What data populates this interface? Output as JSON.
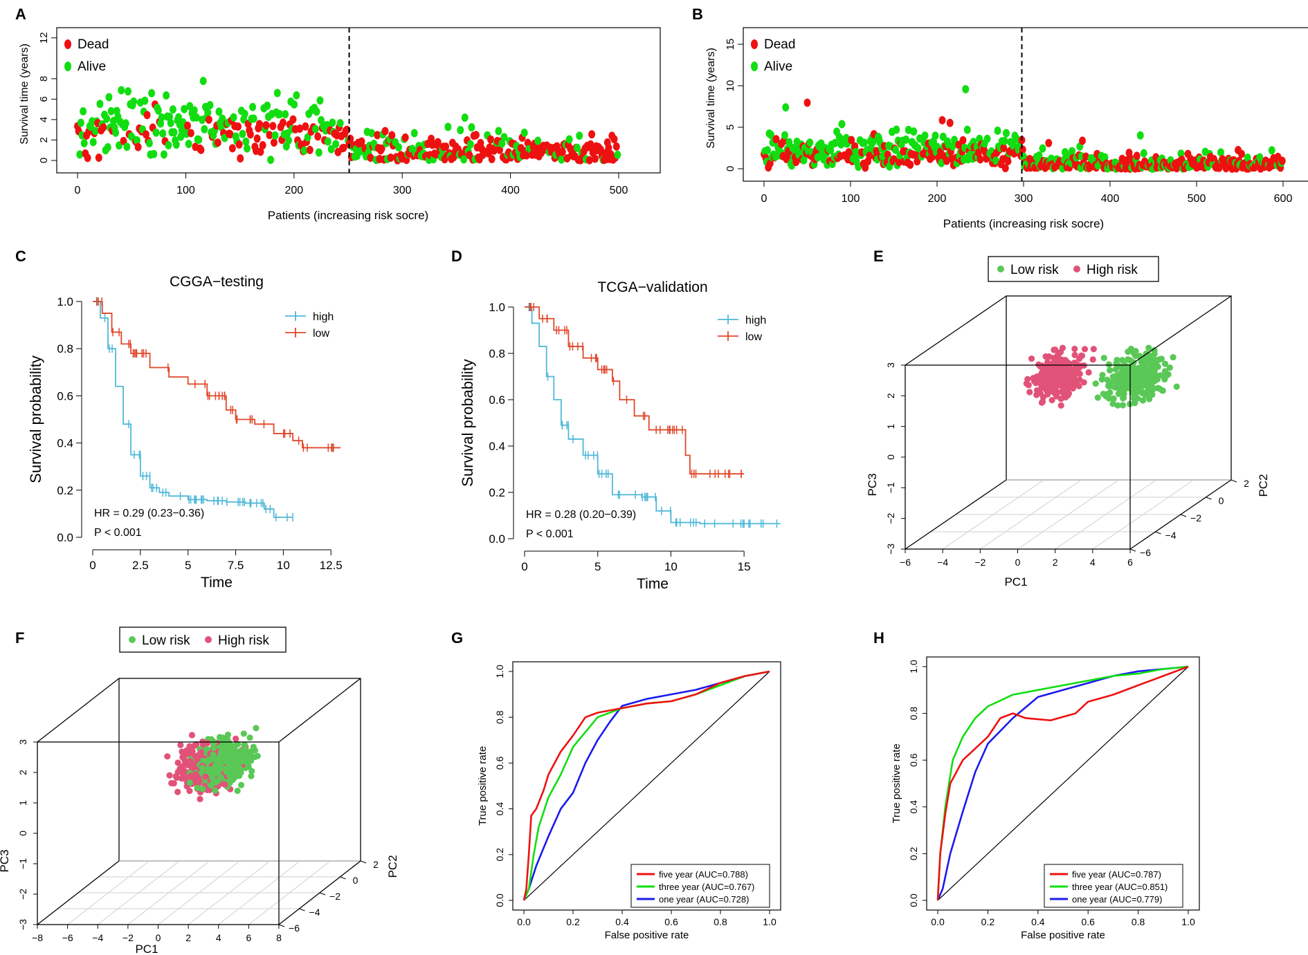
{
  "figure": {
    "panel_letters": [
      "A",
      "B",
      "C",
      "D",
      "E",
      "F",
      "G",
      "H"
    ],
    "colors": {
      "dead": "#ee1111",
      "alive": "#11dd11",
      "km_high": "#4fb8d8",
      "km_low": "#e0472a",
      "pca_low": "#5ac857",
      "pca_high": "#e15278",
      "roc_five": "#ee1111",
      "roc_three": "#11dd11",
      "roc_one": "#1a1aee"
    }
  },
  "chart_data": [
    {
      "id": "A",
      "type": "scatter",
      "xlabel": "Patients (increasing risk socre)",
      "ylabel": "Survival time (years)",
      "xlim": [
        0,
        500
      ],
      "ylim": [
        0,
        13
      ],
      "xticks": [
        "0",
        "100",
        "200",
        "300",
        "400",
        "500"
      ],
      "yticks": [
        "0",
        "2",
        "4",
        "6",
        "8",
        "12"
      ],
      "yticks_values": [
        0,
        2,
        4,
        6,
        8,
        12
      ],
      "legend": [
        "Dead",
        "Alive"
      ],
      "cutoff": 251,
      "n": 482,
      "seed": 11,
      "series": [
        {
          "name": "Dead",
          "count": 300
        },
        {
          "name": "Alive",
          "count": 182
        }
      ]
    },
    {
      "id": "B",
      "type": "scatter",
      "xlabel": "Patients (increasing risk socre)",
      "ylabel": "Survival time (years)",
      "xlim": [
        0,
        600
      ],
      "ylim": [
        0,
        17
      ],
      "xticks": [
        "0",
        "100",
        "200",
        "300",
        "400",
        "500",
        "600"
      ],
      "yticks": [
        "0",
        "5",
        "10",
        "15"
      ],
      "yticks_values": [
        0,
        5,
        10,
        15
      ],
      "legend": [
        "Dead",
        "Alive"
      ],
      "cutoff": 298,
      "n": 600,
      "seed": 23,
      "series": [
        {
          "name": "Dead",
          "count": 150
        },
        {
          "name": "Alive",
          "count": 450
        }
      ]
    },
    {
      "id": "C",
      "type": "line",
      "title": "CGGA−testing",
      "xlabel": "Time",
      "ylabel": "Survival probability",
      "xlim": [
        0,
        13
      ],
      "ylim": [
        0,
        1
      ],
      "xticks": [
        "0",
        "2.5",
        "5",
        "7.5",
        "10",
        "12.5"
      ],
      "xticks_values": [
        0,
        2.5,
        5,
        7.5,
        10,
        12.5
      ],
      "yticks": [
        "0.0",
        "0.2",
        "0.4",
        "0.6",
        "0.8",
        "1.0"
      ],
      "legend": [
        "high",
        "low"
      ],
      "hr_text": "HR = 0.29 (0.23−0.36)",
      "p_text": "P < 0.001",
      "series": [
        {
          "name": "high",
          "points": [
            [
              0,
              1.0
            ],
            [
              0.4,
              0.93
            ],
            [
              0.8,
              0.8
            ],
            [
              1.2,
              0.64
            ],
            [
              1.6,
              0.48
            ],
            [
              2.0,
              0.35
            ],
            [
              2.5,
              0.26
            ],
            [
              3.0,
              0.21
            ],
            [
              3.5,
              0.19
            ],
            [
              4.0,
              0.175
            ],
            [
              5.0,
              0.16
            ],
            [
              6.0,
              0.155
            ],
            [
              7.0,
              0.15
            ],
            [
              8.0,
              0.145
            ],
            [
              9.0,
              0.12
            ],
            [
              9.5,
              0.085
            ],
            [
              10.5,
              0.085
            ]
          ]
        },
        {
          "name": "low",
          "points": [
            [
              0,
              1.0
            ],
            [
              0.5,
              0.95
            ],
            [
              1.0,
              0.87
            ],
            [
              1.5,
              0.82
            ],
            [
              2.0,
              0.78
            ],
            [
              3.0,
              0.72
            ],
            [
              4.0,
              0.68
            ],
            [
              5.0,
              0.65
            ],
            [
              6.0,
              0.6
            ],
            [
              7.0,
              0.54
            ],
            [
              7.5,
              0.5
            ],
            [
              8.5,
              0.48
            ],
            [
              9.5,
              0.44
            ],
            [
              10.5,
              0.41
            ],
            [
              11.0,
              0.38
            ],
            [
              13.0,
              0.38
            ]
          ]
        }
      ]
    },
    {
      "id": "D",
      "type": "line",
      "title": "TCGA−validation",
      "xlabel": "Time",
      "ylabel": "Survival probability",
      "xlim": [
        0,
        17.5
      ],
      "ylim": [
        0,
        1
      ],
      "xticks": [
        "0",
        "5",
        "10",
        "15"
      ],
      "xticks_values": [
        0,
        5,
        10,
        15
      ],
      "yticks": [
        "0.0",
        "0.2",
        "0.4",
        "0.6",
        "0.8",
        "1.0"
      ],
      "legend": [
        "high",
        "low"
      ],
      "hr_text": "HR = 0.28 (0.20−0.39)",
      "p_text": "P < 0.001",
      "series": [
        {
          "name": "high",
          "points": [
            [
              0,
              1.0
            ],
            [
              0.5,
              0.93
            ],
            [
              1.0,
              0.83
            ],
            [
              1.5,
              0.7
            ],
            [
              2.0,
              0.6
            ],
            [
              2.5,
              0.49
            ],
            [
              3.0,
              0.43
            ],
            [
              4.0,
              0.36
            ],
            [
              5.0,
              0.28
            ],
            [
              6.0,
              0.19
            ],
            [
              8.0,
              0.18
            ],
            [
              9.0,
              0.12
            ],
            [
              10.0,
              0.07
            ],
            [
              12.0,
              0.065
            ],
            [
              17.5,
              0.065
            ]
          ]
        },
        {
          "name": "low",
          "points": [
            [
              0,
              1.0
            ],
            [
              1.0,
              0.95
            ],
            [
              2.0,
              0.9
            ],
            [
              3.0,
              0.83
            ],
            [
              4.0,
              0.78
            ],
            [
              5.0,
              0.73
            ],
            [
              6.0,
              0.68
            ],
            [
              6.5,
              0.6
            ],
            [
              7.5,
              0.53
            ],
            [
              8.5,
              0.47
            ],
            [
              10.0,
              0.47
            ],
            [
              11.0,
              0.36
            ],
            [
              11.3,
              0.28
            ],
            [
              15.0,
              0.28
            ]
          ]
        }
      ]
    },
    {
      "id": "E",
      "type": "scatter",
      "projection": "3d",
      "xlabel": "PC1",
      "ylabel": "PC2",
      "zlabel": "PC3",
      "xlim": [
        -6,
        6
      ],
      "ylim": [
        -6,
        2
      ],
      "zlim": [
        -3,
        3
      ],
      "xticks": [
        "−6",
        "−4",
        "−2",
        "0",
        "2",
        "4",
        "6"
      ],
      "yticks": [
        "−6",
        "−4",
        "−2",
        "0",
        "2"
      ],
      "zticks": [
        "−3",
        "−2",
        "−1",
        "0",
        "1",
        "2",
        "3"
      ],
      "legend": [
        "Low risk",
        "High risk"
      ],
      "seed": 37,
      "series": [
        {
          "name": "Low risk",
          "count": 260,
          "center": [
            2.0,
            0.5,
            0.8
          ],
          "spread": [
            1.8,
            1.6,
            0.9
          ]
        },
        {
          "name": "High risk",
          "count": 240,
          "center": [
            -1.5,
            -0.5,
            1.1
          ],
          "spread": [
            1.4,
            1.4,
            0.9
          ]
        }
      ]
    },
    {
      "id": "F",
      "type": "scatter",
      "projection": "3d",
      "xlabel": "PC1",
      "ylabel": "PC2",
      "zlabel": "PC3",
      "xlim": [
        -8,
        8
      ],
      "ylim": [
        -6,
        2
      ],
      "zlim": [
        -3,
        3
      ],
      "xticks": [
        "−8",
        "−6",
        "−4",
        "−2",
        "0",
        "2",
        "4",
        "6",
        "8"
      ],
      "yticks": [
        "−6",
        "−4",
        "−2",
        "0",
        "2"
      ],
      "zticks": [
        "−3",
        "−2",
        "−1",
        "0",
        "1",
        "2",
        "3"
      ],
      "legend": [
        "Low risk",
        "High risk"
      ],
      "seed": 53,
      "series": [
        {
          "name": "Low risk",
          "count": 300,
          "center": [
            1.5,
            -1.5,
            1.2
          ],
          "spread": [
            2.0,
            1.8,
            0.8
          ]
        },
        {
          "name": "High risk",
          "count": 290,
          "center": [
            0.0,
            -1.5,
            1.0
          ],
          "spread": [
            2.3,
            1.8,
            0.9
          ]
        }
      ]
    },
    {
      "id": "G",
      "type": "line",
      "xlabel": "False positive rate",
      "ylabel": "True positive rate",
      "xlim": [
        0,
        1
      ],
      "ylim": [
        0,
        1
      ],
      "xticks": [
        "0.0",
        "0.2",
        "0.4",
        "0.6",
        "0.8",
        "1.0"
      ],
      "yticks": [
        "0.0",
        "0.2",
        "0.4",
        "0.6",
        "0.8",
        "1.0"
      ],
      "legend": [
        "five year (AUC=0.788)",
        "three year (AUC=0.767)",
        "one year (AUC=0.728)"
      ],
      "series": [
        {
          "name": "five year",
          "auc": 0.788,
          "points": [
            [
              0,
              0
            ],
            [
              0.01,
              0.05
            ],
            [
              0.02,
              0.2
            ],
            [
              0.03,
              0.37
            ],
            [
              0.05,
              0.4
            ],
            [
              0.08,
              0.48
            ],
            [
              0.1,
              0.55
            ],
            [
              0.15,
              0.65
            ],
            [
              0.2,
              0.72
            ],
            [
              0.25,
              0.8
            ],
            [
              0.3,
              0.82
            ],
            [
              0.4,
              0.84
            ],
            [
              0.5,
              0.86
            ],
            [
              0.6,
              0.87
            ],
            [
              0.7,
              0.9
            ],
            [
              0.8,
              0.95
            ],
            [
              0.9,
              0.98
            ],
            [
              1,
              1
            ]
          ]
        },
        {
          "name": "three year",
          "auc": 0.767,
          "points": [
            [
              0,
              0
            ],
            [
              0.02,
              0.05
            ],
            [
              0.04,
              0.2
            ],
            [
              0.06,
              0.32
            ],
            [
              0.1,
              0.45
            ],
            [
              0.15,
              0.55
            ],
            [
              0.2,
              0.67
            ],
            [
              0.3,
              0.8
            ],
            [
              0.4,
              0.84
            ],
            [
              0.5,
              0.86
            ],
            [
              0.6,
              0.87
            ],
            [
              0.7,
              0.9
            ],
            [
              0.8,
              0.94
            ],
            [
              0.9,
              0.98
            ],
            [
              1,
              1
            ]
          ]
        },
        {
          "name": "one year",
          "auc": 0.728,
          "points": [
            [
              0,
              0
            ],
            [
              0.02,
              0.05
            ],
            [
              0.05,
              0.15
            ],
            [
              0.1,
              0.28
            ],
            [
              0.15,
              0.4
            ],
            [
              0.2,
              0.47
            ],
            [
              0.25,
              0.6
            ],
            [
              0.3,
              0.7
            ],
            [
              0.35,
              0.78
            ],
            [
              0.4,
              0.85
            ],
            [
              0.5,
              0.88
            ],
            [
              0.6,
              0.9
            ],
            [
              0.7,
              0.92
            ],
            [
              0.8,
              0.95
            ],
            [
              0.9,
              0.98
            ],
            [
              1,
              1
            ]
          ]
        }
      ]
    },
    {
      "id": "H",
      "type": "line",
      "xlabel": "False positive rate",
      "ylabel": "True positive rate",
      "xlim": [
        0,
        1
      ],
      "ylim": [
        0,
        1
      ],
      "xticks": [
        "0.0",
        "0.2",
        "0.4",
        "0.6",
        "0.8",
        "1.0"
      ],
      "yticks": [
        "0.0",
        "0.2",
        "0.4",
        "0.6",
        "0.8",
        "1.0"
      ],
      "legend": [
        "five year (AUC=0.787)",
        "three year (AUC=0.851)",
        "one year (AUC=0.779)"
      ],
      "series": [
        {
          "name": "five year",
          "auc": 0.787,
          "points": [
            [
              0,
              0
            ],
            [
              0.01,
              0.2
            ],
            [
              0.03,
              0.37
            ],
            [
              0.05,
              0.5
            ],
            [
              0.1,
              0.6
            ],
            [
              0.15,
              0.65
            ],
            [
              0.2,
              0.7
            ],
            [
              0.25,
              0.78
            ],
            [
              0.3,
              0.8
            ],
            [
              0.35,
              0.78
            ],
            [
              0.45,
              0.77
            ],
            [
              0.55,
              0.8
            ],
            [
              0.6,
              0.85
            ],
            [
              0.7,
              0.88
            ],
            [
              0.8,
              0.92
            ],
            [
              0.9,
              0.96
            ],
            [
              1,
              1
            ]
          ]
        },
        {
          "name": "three year",
          "auc": 0.851,
          "points": [
            [
              0,
              0
            ],
            [
              0.01,
              0.2
            ],
            [
              0.03,
              0.4
            ],
            [
              0.06,
              0.6
            ],
            [
              0.1,
              0.7
            ],
            [
              0.15,
              0.78
            ],
            [
              0.2,
              0.83
            ],
            [
              0.3,
              0.88
            ],
            [
              0.4,
              0.9
            ],
            [
              0.5,
              0.92
            ],
            [
              0.6,
              0.94
            ],
            [
              0.7,
              0.96
            ],
            [
              0.8,
              0.97
            ],
            [
              0.9,
              0.99
            ],
            [
              1,
              1
            ]
          ]
        },
        {
          "name": "one year",
          "auc": 0.779,
          "points": [
            [
              0,
              0
            ],
            [
              0.02,
              0.05
            ],
            [
              0.05,
              0.2
            ],
            [
              0.1,
              0.38
            ],
            [
              0.15,
              0.55
            ],
            [
              0.2,
              0.67
            ],
            [
              0.3,
              0.78
            ],
            [
              0.4,
              0.87
            ],
            [
              0.5,
              0.9
            ],
            [
              0.6,
              0.93
            ],
            [
              0.7,
              0.96
            ],
            [
              0.8,
              0.98
            ],
            [
              0.9,
              0.99
            ],
            [
              1,
              1
            ]
          ]
        }
      ]
    }
  ]
}
